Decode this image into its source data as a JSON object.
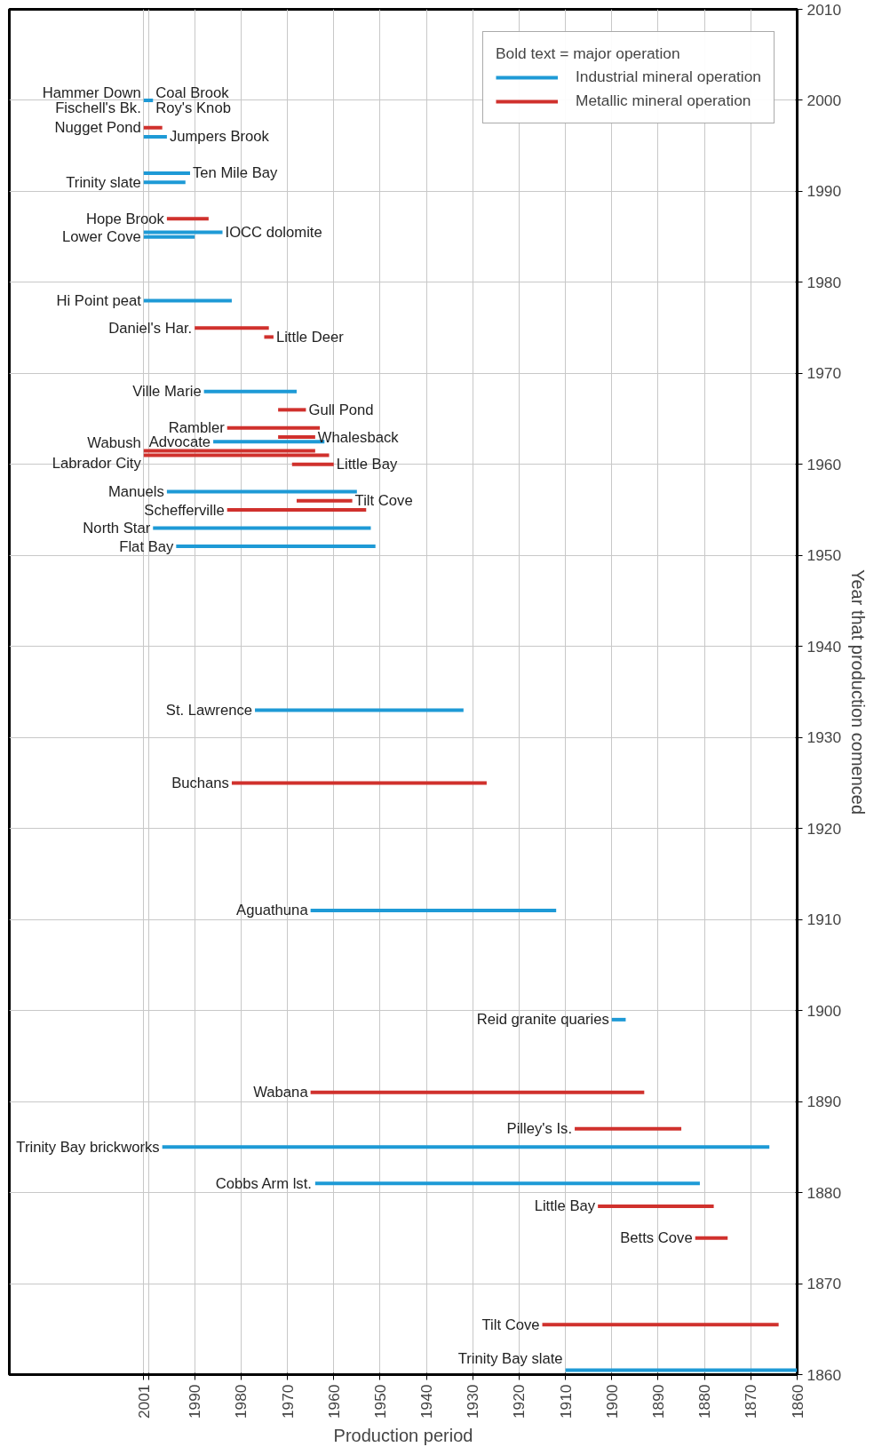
{
  "chart_data": {
    "type": "line",
    "xlabel": "Production period",
    "ylabel": "Year that production comenced",
    "legend_title": "Bold text = major operation",
    "legend": "top right",
    "grid": true,
    "line_style": "solid",
    "marker": "none",
    "xlim": [
      2030,
      1860
    ],
    "xticks": [
      2001,
      {
        "value": 2000,
        "label": null
      },
      1990,
      1980,
      1970,
      1960,
      1950,
      1940,
      1930,
      1920,
      1910,
      1900,
      1890,
      1880,
      1870,
      1860
    ],
    "ylim": [
      1860,
      2010
    ],
    "yticks": [
      1860,
      1870,
      1880,
      1890,
      1900,
      1910,
      1920,
      1930,
      1940,
      1950,
      1960,
      1970,
      1980,
      1990,
      2000,
      2010
    ],
    "series": [
      {
        "name": "Industrial mineral operation",
        "color": "#1e9ad6",
        "x": [
          2001,
          1999,
          null,
          2001,
          1996,
          null,
          2001,
          1991,
          null,
          2001,
          1992,
          null,
          2001,
          1984,
          null,
          2001,
          1990,
          null,
          2001,
          1982,
          null,
          1988,
          1968,
          null,
          1986,
          1962,
          null,
          1996,
          1955,
          null,
          1999,
          1952,
          null,
          1994,
          1951,
          null,
          1977,
          1932,
          null,
          1965,
          1912,
          null,
          1900,
          1897,
          null,
          1997,
          1866,
          null,
          1964,
          1881,
          null,
          1910,
          1860
        ],
        "values": [
          2000,
          2000,
          null,
          1996,
          1996,
          null,
          1992,
          1992,
          null,
          1991,
          1991,
          null,
          1985.5,
          1985.5,
          null,
          1985,
          1985,
          null,
          1978,
          1978,
          null,
          1968,
          1968,
          null,
          1962.5,
          1962.5,
          null,
          1957,
          1957,
          null,
          1953,
          1953,
          null,
          1951,
          1951,
          null,
          1933,
          1933,
          null,
          1911,
          1911,
          null,
          1899,
          1899,
          null,
          1885,
          1885,
          null,
          1881,
          1881,
          null,
          1860.5,
          1860.5
        ]
      },
      {
        "name": "Metallic mineral operation",
        "color": "#d0312d",
        "x": [
          2001,
          1997,
          null,
          1996,
          1987,
          null,
          1990,
          1974,
          null,
          1975,
          1973,
          null,
          1972,
          1966,
          null,
          1983,
          1963,
          null,
          1972,
          1964,
          null,
          2001,
          1964,
          null,
          2001,
          1961,
          null,
          1969,
          1960,
          null,
          1968,
          1956,
          null,
          1983,
          1953,
          null,
          1982,
          1927,
          null,
          1965,
          1893,
          null,
          1908,
          1885,
          null,
          1903,
          1878,
          null,
          1882,
          1875,
          null,
          1915,
          1864
        ],
        "values": [
          1997,
          1997,
          null,
          1987,
          1987,
          null,
          1975,
          1975,
          null,
          1974,
          1974,
          null,
          1966,
          1966,
          null,
          1964,
          1964,
          null,
          1963,
          1963,
          null,
          1961.5,
          1961.5,
          null,
          1961,
          1961,
          null,
          1960,
          1960,
          null,
          1956,
          1956,
          null,
          1955,
          1955,
          null,
          1925,
          1925,
          null,
          1891,
          1891,
          null,
          1887,
          1887,
          null,
          1878.5,
          1878.5,
          null,
          1875,
          1875,
          null,
          1865.5,
          1865.5
        ]
      }
    ],
    "annotations": [
      {
        "text": "Hammer Down",
        "x": 2001,
        "y": 2000
      },
      {
        "text": "Coal Brook",
        "x": 1999,
        "y": 2000
      },
      {
        "text": "Fischell's Bk.",
        "x": 2001,
        "y": 2000
      },
      {
        "text": "Roy's Knob",
        "x": 1999,
        "y": 2000
      },
      {
        "text": "Nugget Pond",
        "x": 2001,
        "y": 1997
      },
      {
        "text": "Jumpers Brook",
        "x": 1996,
        "y": 1996
      },
      {
        "text": "Ten Mile Bay",
        "x": 1991,
        "y": 1992
      },
      {
        "text": "Trinity slate",
        "x": 2001,
        "y": 1991
      },
      {
        "text": "Hope Brook",
        "x": 1996,
        "y": 1987
      },
      {
        "text": "IOCC dolomite",
        "x": 1984,
        "y": 1985.5
      },
      {
        "text": "Lower Cove",
        "x": 2001,
        "y": 1985
      },
      {
        "text": "Hi Point peat",
        "x": 2001,
        "y": 1978
      },
      {
        "text": "Daniel's Har.",
        "x": 1990,
        "y": 1975
      },
      {
        "text": "Little Deer",
        "x": 1973,
        "y": 1974
      },
      {
        "text": "Ville Marie",
        "x": 1988,
        "y": 1968
      },
      {
        "text": "Gull Pond",
        "x": 1966,
        "y": 1966
      },
      {
        "text": "Rambler",
        "x": 1983,
        "y": 1964
      },
      {
        "text": "Whalesback",
        "x": 1964,
        "y": 1963
      },
      {
        "text": "Advocate",
        "x": 1986,
        "y": 1962.5
      },
      {
        "text": "Wabush",
        "x": 2001,
        "y": 1961.5
      },
      {
        "text": "Labrador City",
        "x": 2001,
        "y": 1961
      },
      {
        "text": "Little Bay",
        "x": 1960,
        "y": 1960
      },
      {
        "text": "Manuels",
        "x": 1996,
        "y": 1957
      },
      {
        "text": "Tilt Cove",
        "x": 1956,
        "y": 1956
      },
      {
        "text": "Schefferville",
        "x": 1983,
        "y": 1955
      },
      {
        "text": "North Star",
        "x": 1999,
        "y": 1953
      },
      {
        "text": "Flat Bay",
        "x": 1994,
        "y": 1951
      },
      {
        "text": "St. Lawrence",
        "x": 1977,
        "y": 1933
      },
      {
        "text": "Buchans",
        "x": 1982,
        "y": 1925
      },
      {
        "text": "Aguathuna",
        "x": 1965,
        "y": 1911
      },
      {
        "text": "Reid granite quaries",
        "x": 1900,
        "y": 1899
      },
      {
        "text": "Wabana",
        "x": 1965,
        "y": 1891
      },
      {
        "text": "Pilley's Is.",
        "x": 1908,
        "y": 1887
      },
      {
        "text": "Trinity Bay brickworks",
        "x": 1997,
        "y": 1885
      },
      {
        "text": "Cobbs Arm lst.",
        "x": 1964,
        "y": 1881
      },
      {
        "text": "Little Bay",
        "x": 1903,
        "y": 1878.5
      },
      {
        "text": "Betts Cove",
        "x": 1882,
        "y": 1875
      },
      {
        "text": "Tilt Cove",
        "x": 1915,
        "y": 1865.5
      },
      {
        "text": "Trinity Bay slate",
        "x": 1910,
        "y": 1860.5
      }
    ]
  }
}
